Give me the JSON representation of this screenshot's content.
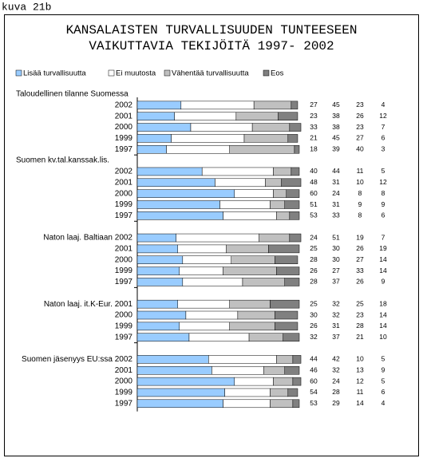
{
  "figure_label": "kuva 21b",
  "chart_data": {
    "type": "bar",
    "orientation": "horizontal",
    "stacked": true,
    "title": [
      "KANSALAISTEN TURVALLISUUDEN TUNTEESEEN",
      "VAIKUTTAVIA TEKIJÖITÄ 1997- 2002"
    ],
    "series": [
      {
        "name": "Lisää turvallisuutta",
        "color": "#99ccff"
      },
      {
        "name": "Ei muutosta",
        "color": "#ffffff"
      },
      {
        "name": "Vähentää turvallisuutta",
        "color": "#c0c0c0"
      },
      {
        "name": "Eos",
        "color": "#808080"
      }
    ],
    "groups": [
      {
        "title": "Taloudellinen tilanne Suomessa",
        "categories": [
          "2002",
          "2001",
          "2000",
          "1999",
          "1997"
        ],
        "values": [
          [
            27,
            45,
            23,
            4
          ],
          [
            23,
            38,
            26,
            12
          ],
          [
            33,
            38,
            23,
            7
          ],
          [
            21,
            45,
            27,
            6
          ],
          [
            18,
            39,
            40,
            3
          ]
        ]
      },
      {
        "title": "Suomen kv.tal.kanssak.lis.",
        "categories": [
          "2002",
          "2001",
          "2000",
          "1999",
          "1997"
        ],
        "values": [
          [
            40,
            44,
            11,
            5
          ],
          [
            48,
            31,
            10,
            12
          ],
          [
            60,
            24,
            8,
            8
          ],
          [
            51,
            31,
            9,
            9
          ],
          [
            53,
            33,
            8,
            6
          ]
        ]
      },
      {
        "categories": [
          "Naton laaj. Baltiaan 2002",
          "2001",
          "2000",
          "1999",
          "1997"
        ],
        "values": [
          [
            24,
            51,
            19,
            7
          ],
          [
            25,
            30,
            26,
            19
          ],
          [
            28,
            30,
            27,
            14
          ],
          [
            26,
            27,
            33,
            14
          ],
          [
            28,
            37,
            26,
            9
          ]
        ]
      },
      {
        "categories": [
          "Naton laaj. it.K-Eur. 2001",
          "2000",
          "1999",
          "1997"
        ],
        "values": [
          [
            25,
            32,
            25,
            18
          ],
          [
            30,
            32,
            23,
            14
          ],
          [
            26,
            31,
            28,
            14
          ],
          [
            32,
            37,
            21,
            10
          ]
        ]
      },
      {
        "categories": [
          "Suomen jäsenyys EU:ssa 2002",
          "2001",
          "2000",
          "1999",
          "1997"
        ],
        "values": [
          [
            44,
            42,
            10,
            5
          ],
          [
            46,
            32,
            13,
            9
          ],
          [
            60,
            24,
            12,
            5
          ],
          [
            54,
            28,
            11,
            6
          ],
          [
            53,
            29,
            14,
            4
          ]
        ]
      }
    ]
  }
}
